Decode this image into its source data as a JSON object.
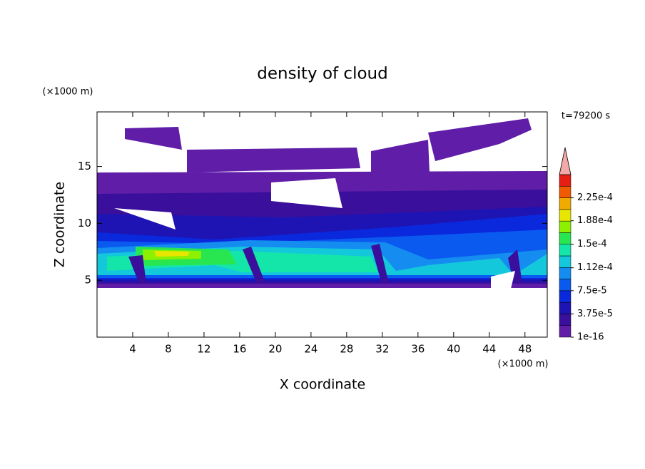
{
  "chart_data": {
    "type": "contour",
    "title": "density of cloud",
    "x_label": "X coordinate",
    "y_label": "Z coordinate",
    "x_unit": "(×1000 m)",
    "y_unit": "(×1000 m)",
    "time_label": "t=79200 s",
    "xlim": [
      0,
      50.5
    ],
    "xticks": [
      4,
      8,
      12,
      16,
      20,
      24,
      28,
      32,
      36,
      40,
      44,
      48
    ],
    "ylim": [
      0,
      19.8
    ],
    "yticks": [
      5,
      10,
      15
    ],
    "colorbar": {
      "clim": [
        1e-16,
        0.0002625
      ],
      "ticks": [
        1e-16,
        {
          "value": 3.75e-05,
          "label": "3.75e-5"
        },
        {
          "value": 7.5e-05,
          "label": "7.5e-5"
        },
        {
          "value": 0.000112,
          "label": "1.12e-4"
        },
        {
          "value": 0.00015,
          "label": "1.5e-4"
        },
        {
          "value": 0.000188,
          "label": "1.88e-4"
        },
        {
          "value": 0.000225,
          "label": "2.25e-4"
        }
      ],
      "colors": [
        "#5f1da8",
        "#3a0f9c",
        "#1e14b4",
        "#0a28dc",
        "#0a5af0",
        "#148cf0",
        "#14c8dc",
        "#14e6aa",
        "#28e650",
        "#8cf000",
        "#e6e600",
        "#f0aa00",
        "#f05a00",
        "#e61e14"
      ],
      "extend_color": "#f4a8a8"
    }
  }
}
